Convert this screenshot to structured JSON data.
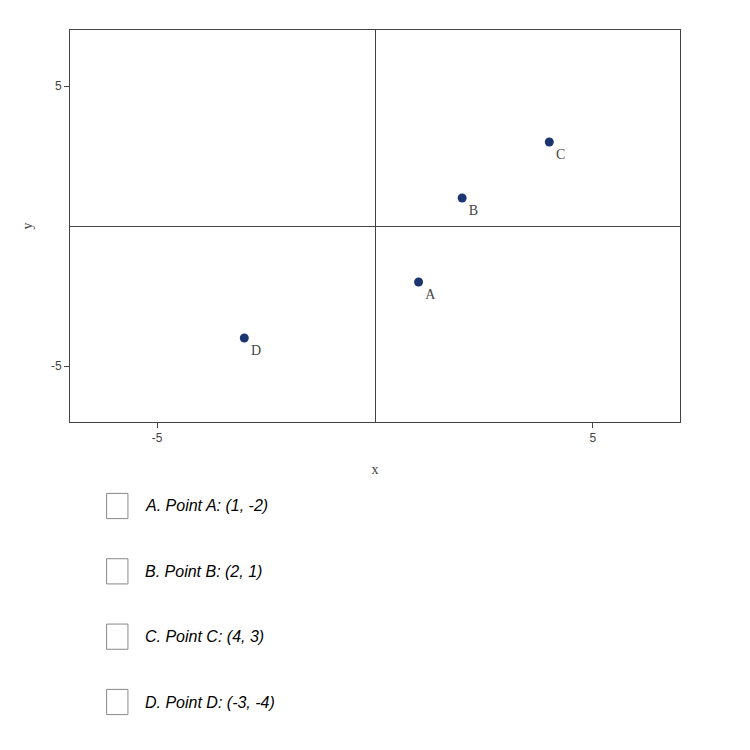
{
  "chart_data": {
    "type": "scatter",
    "x_label": "x",
    "y_label": "y",
    "labels": [
      "A",
      "B",
      "C",
      "D"
    ],
    "x": [
      1,
      2,
      4,
      -3
    ],
    "values": [
      -2,
      1,
      3,
      -4
    ],
    "color": "#1a3570",
    "marker": "circle",
    "xlim": [
      -7,
      7
    ],
    "ylim": [
      -7,
      7
    ],
    "xticks": [
      -5,
      5
    ],
    "yticks": [
      -5,
      5
    ],
    "grid": false,
    "annotations": [
      "A. Point A: (1, -2)",
      "B. Point B: (2, 1)",
      "C. Point C: (4, 3)",
      "D. Point D: (-3, -4)"
    ]
  }
}
